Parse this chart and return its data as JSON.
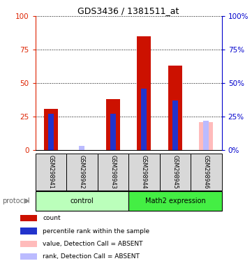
{
  "title": "GDS3436 / 1381511_at",
  "samples": [
    "GSM298941",
    "GSM298942",
    "GSM298943",
    "GSM298944",
    "GSM298945",
    "GSM298946"
  ],
  "red_values": [
    31,
    0,
    38,
    85,
    63,
    0
  ],
  "blue_values": [
    27,
    0,
    27,
    46,
    37,
    0
  ],
  "absent_red_values": [
    0,
    0,
    0,
    0,
    0,
    21
  ],
  "absent_blue_values": [
    0,
    3,
    0,
    0,
    0,
    22
  ],
  "groups": [
    {
      "label": "control",
      "span": [
        0,
        3
      ],
      "color": "#bbffbb"
    },
    {
      "label": "Math2 expression",
      "span": [
        3,
        6
      ],
      "color": "#44ee44"
    }
  ],
  "ylim": [
    0,
    100
  ],
  "yticks": [
    0,
    25,
    50,
    75,
    100
  ],
  "left_axis_color": "#dd2200",
  "right_axis_color": "#0000cc",
  "red_color": "#cc1100",
  "blue_color": "#2233cc",
  "absent_red_color": "#ffbbbb",
  "absent_blue_color": "#bbbbff",
  "protocol_label": "protocol",
  "legend_items": [
    {
      "color": "#cc1100",
      "label": "count"
    },
    {
      "color": "#2233cc",
      "label": "percentile rank within the sample"
    },
    {
      "color": "#ffbbbb",
      "label": "value, Detection Call = ABSENT"
    },
    {
      "color": "#bbbbff",
      "label": "rank, Detection Call = ABSENT"
    }
  ]
}
